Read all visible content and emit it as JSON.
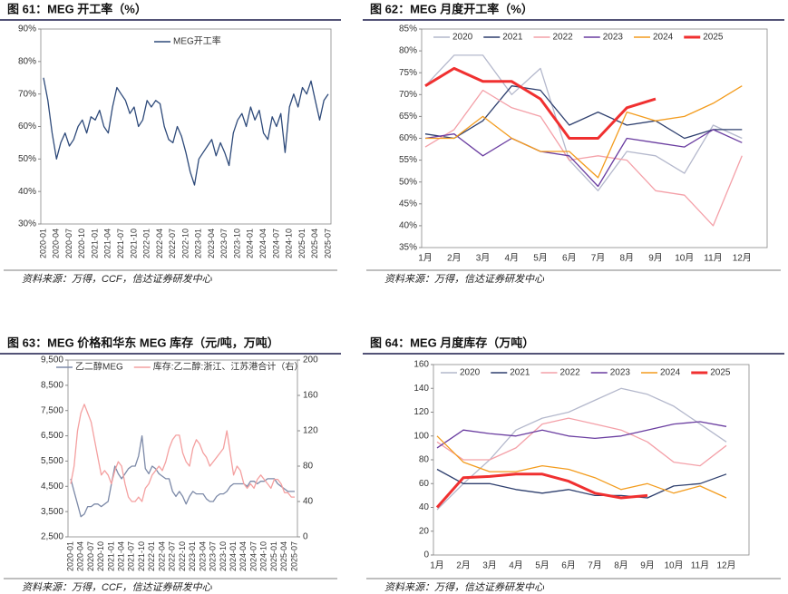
{
  "chart_data": [
    {
      "type": "line",
      "title": "图 61：MEG 开工率（%）",
      "source": "资料来源：万得，CCF，信达证券研发中心",
      "categories": [
        "2020-01",
        null,
        null,
        "2020-04",
        null,
        null,
        "2020-07",
        null,
        null,
        "2020-10",
        null,
        null,
        "2021-01",
        null,
        null,
        "2021-04",
        null,
        null,
        "2021-07",
        null,
        null,
        "2021-10",
        null,
        null,
        "2022-01",
        null,
        null,
        "2022-04",
        null,
        null,
        "2022-07",
        null,
        null,
        "2022-10",
        null,
        null,
        "2023-01",
        null,
        null,
        "2023-04",
        null,
        null,
        "2023-07",
        null,
        null,
        "2023-10",
        null,
        null,
        "2024-01",
        null,
        null,
        "2024-04",
        null,
        null,
        "2024-07",
        null,
        null,
        "2024-10",
        null,
        null,
        "2025-01",
        null,
        null,
        "2025-04",
        null,
        null,
        "2025-07"
      ],
      "series": [
        {
          "name": "MEG开工率",
          "color": "#2e4a7a",
          "values": [
            75,
            68,
            58,
            50,
            55,
            58,
            54,
            56,
            60,
            62,
            58,
            63,
            62,
            65,
            60,
            58,
            66,
            72,
            70,
            68,
            64,
            66,
            60,
            62,
            68,
            66,
            68,
            67,
            60,
            56,
            55,
            60,
            57,
            52,
            46,
            42,
            50,
            52,
            54,
            56,
            51,
            55,
            52,
            48,
            58,
            62,
            64,
            60,
            66,
            62,
            65,
            58,
            56,
            63,
            60,
            64,
            52,
            66,
            70,
            66,
            72,
            70,
            74,
            68,
            62,
            68,
            70
          ]
        }
      ],
      "ylim": [
        30,
        90
      ],
      "yticks": [
        {
          "value": 30,
          "label": "30%"
        },
        {
          "value": 40,
          "label": "40%"
        },
        {
          "value": 50,
          "label": "50%"
        },
        {
          "value": 60,
          "label": "60%"
        },
        {
          "value": 70,
          "label": "70%"
        },
        {
          "value": 80,
          "label": "80%"
        },
        {
          "value": 90,
          "label": "90%"
        }
      ]
    },
    {
      "type": "line",
      "title": "图 62：MEG 月度开工率（%）",
      "source": "资料来源：万得，信达证券研发中心",
      "categories": [
        "1月",
        "2月",
        "3月",
        "4月",
        "5月",
        "6月",
        "7月",
        "8月",
        "9月",
        "10月",
        "11月",
        "12月"
      ],
      "series": [
        {
          "name": "2020",
          "color": "#b4b8cc",
          "values": [
            72,
            79,
            79,
            70,
            76,
            55,
            48,
            57,
            56,
            52,
            63,
            60
          ]
        },
        {
          "name": "2021",
          "color": "#2e3f6e",
          "values": [
            61,
            60,
            64,
            72,
            71,
            63,
            66,
            63,
            64,
            60,
            62,
            62
          ]
        },
        {
          "name": "2022",
          "color": "#f4a0a8",
          "values": [
            58,
            62,
            71,
            67,
            65,
            55,
            56,
            55,
            48,
            47,
            40,
            56
          ]
        },
        {
          "name": "2023",
          "color": "#6a3da0",
          "values": [
            60,
            61,
            56,
            60,
            57,
            56,
            49,
            60,
            59,
            58,
            62,
            59
          ]
        },
        {
          "name": "2024",
          "color": "#f39c1e",
          "values": [
            60,
            60,
            65,
            60,
            57,
            57,
            51,
            66,
            64,
            65,
            68,
            72
          ]
        },
        {
          "name": "2025",
          "color": "#f03030",
          "values": [
            72,
            76,
            73,
            73,
            69,
            60,
            60,
            67,
            69,
            null,
            null,
            null
          ]
        }
      ],
      "ylim": [
        35,
        85
      ],
      "yticks": [
        {
          "value": 35,
          "label": "35%"
        },
        {
          "value": 40,
          "label": "40%"
        },
        {
          "value": 45,
          "label": "45%"
        },
        {
          "value": 50,
          "label": "50%"
        },
        {
          "value": 55,
          "label": "55%"
        },
        {
          "value": 60,
          "label": "60%"
        },
        {
          "value": 65,
          "label": "65%"
        },
        {
          "value": 70,
          "label": "70%"
        },
        {
          "value": 75,
          "label": "75%"
        },
        {
          "value": 80,
          "label": "80%"
        },
        {
          "value": 85,
          "label": "85%"
        }
      ]
    },
    {
      "type": "line",
      "title": "图 63：MEG 价格和华东 MEG 库存（元/吨，万吨）",
      "source": "资料来源：万得，CCF，信达证券研发中心",
      "categories": [
        "2020-01",
        null,
        null,
        "2020-04",
        null,
        null,
        "2020-07",
        null,
        null,
        "2020-10",
        null,
        null,
        "2021-01",
        null,
        null,
        "2021-04",
        null,
        null,
        "2021-07",
        null,
        null,
        "2021-10",
        null,
        null,
        "2022-01",
        null,
        null,
        "2022-04",
        null,
        null,
        "2022-07",
        null,
        null,
        "2022-10",
        null,
        null,
        "2023-01",
        null,
        null,
        "2023-04",
        null,
        null,
        "2023-07",
        null,
        null,
        "2023-10",
        null,
        null,
        "2024-01",
        null,
        null,
        "2024-04",
        null,
        null,
        "2024-07",
        null,
        null,
        "2024-10",
        null,
        null,
        "2025-01",
        null,
        null,
        "2025-04",
        null,
        null,
        "2025-07"
      ],
      "series": [
        {
          "name": "乙二醇MEG",
          "color": "#7d8aa8",
          "values": [
            4800,
            4300,
            3800,
            3300,
            3400,
            3700,
            3700,
            3800,
            3800,
            3700,
            3800,
            3900,
            4600,
            5300,
            5000,
            4800,
            5000,
            5200,
            5300,
            5300,
            5700,
            6500,
            5200,
            5000,
            5300,
            5200,
            5000,
            4900,
            4800,
            4800,
            4300,
            4100,
            4300,
            4100,
            3800,
            4100,
            4300,
            4200,
            4200,
            4200,
            4000,
            3900,
            3900,
            4100,
            4200,
            4200,
            4300,
            4500,
            4600,
            4600,
            4600,
            4600,
            4500,
            4700,
            4700,
            4600,
            4700,
            4700,
            4800,
            4800,
            4800,
            4600,
            4500,
            4400,
            4300,
            4300,
            4300
          ]
        },
        {
          "name": "库存:乙二醇:浙江、江苏港合计（右）",
          "color": "#f4a0a0",
          "axis": "y2",
          "values": [
            60,
            80,
            120,
            140,
            150,
            140,
            130,
            110,
            90,
            70,
            75,
            70,
            60,
            75,
            85,
            80,
            60,
            45,
            40,
            40,
            45,
            40,
            55,
            60,
            70,
            75,
            80,
            75,
            85,
            100,
            110,
            115,
            115,
            95,
            85,
            80,
            100,
            110,
            105,
            95,
            90,
            80,
            85,
            90,
            95,
            100,
            120,
            95,
            70,
            80,
            75,
            60,
            55,
            60,
            55,
            65,
            70,
            65,
            60,
            55,
            65,
            65,
            60,
            50,
            50,
            45,
            45
          ]
        }
      ],
      "ylim": [
        2500,
        9500
      ],
      "yticks": [
        {
          "value": 2500,
          "label": "2,500"
        },
        {
          "value": 3500,
          "label": "3,500"
        },
        {
          "value": 4500,
          "label": "4,500"
        },
        {
          "value": 5500,
          "label": "5,500"
        },
        {
          "value": 6500,
          "label": "6,500"
        },
        {
          "value": 7500,
          "label": "7,500"
        },
        {
          "value": 8500,
          "label": "8,500"
        },
        {
          "value": 9500,
          "label": "9,500"
        }
      ],
      "y2lim": [
        0,
        200
      ],
      "y2ticks": [
        0,
        40,
        80,
        120,
        160,
        200
      ]
    },
    {
      "type": "line",
      "title": "图 64：MEG 月度库存（万吨）",
      "source": "资料来源：万得，信达证券研发中心",
      "categories": [
        "1月",
        "2月",
        "3月",
        "4月",
        "5月",
        "6月",
        "7月",
        "8月",
        "9月",
        "10月",
        "11月",
        "12月"
      ],
      "series": [
        {
          "name": "2020",
          "color": "#b4b8cc",
          "values": [
            38,
            60,
            80,
            105,
            115,
            120,
            130,
            140,
            135,
            125,
            110,
            95
          ]
        },
        {
          "name": "2021",
          "color": "#2e3f6e",
          "values": [
            72,
            60,
            60,
            55,
            52,
            55,
            50,
            50,
            48,
            58,
            60,
            68
          ]
        },
        {
          "name": "2022",
          "color": "#f4a0a8",
          "values": [
            95,
            80,
            80,
            90,
            110,
            115,
            110,
            105,
            95,
            78,
            75,
            92
          ]
        },
        {
          "name": "2023",
          "color": "#6a3da0",
          "values": [
            90,
            105,
            102,
            100,
            105,
            100,
            98,
            100,
            105,
            110,
            112,
            108
          ]
        },
        {
          "name": "2024",
          "color": "#f39c1e",
          "values": [
            100,
            78,
            70,
            70,
            75,
            72,
            65,
            55,
            60,
            52,
            58,
            48
          ]
        },
        {
          "name": "2025",
          "color": "#f03030",
          "values": [
            40,
            65,
            66,
            68,
            68,
            62,
            52,
            48,
            50,
            null,
            null,
            null
          ]
        }
      ],
      "ylim": [
        0,
        160
      ],
      "yticks": [
        0,
        20,
        40,
        60,
        80,
        100,
        120,
        140,
        160
      ]
    }
  ]
}
